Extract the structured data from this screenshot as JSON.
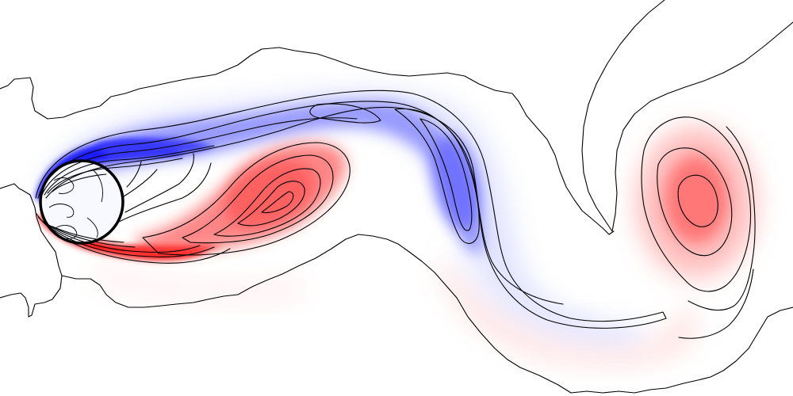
{
  "scene": {
    "subject": "vorticity-field-wake-behind-cylinder",
    "colors": {
      "background": "#ffffff",
      "positive_vorticity": "#ff3b3b",
      "negative_vorticity": "#2a2aff",
      "contour_line": "#000000",
      "cylinder_outline": "#000000"
    }
  }
}
